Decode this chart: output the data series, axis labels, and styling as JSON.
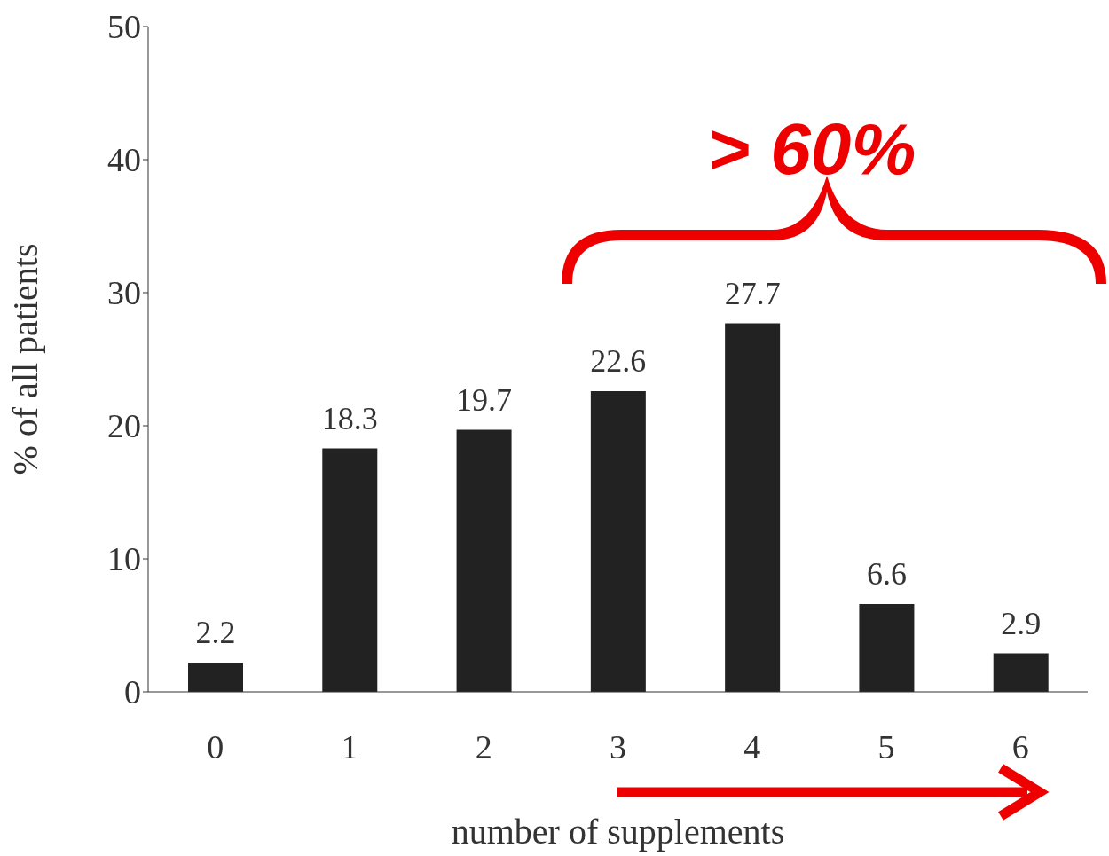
{
  "chart_data": {
    "type": "bar",
    "categories": [
      "0",
      "1",
      "2",
      "3",
      "4",
      "5",
      "6"
    ],
    "values": [
      2.2,
      18.3,
      19.7,
      22.6,
      27.7,
      6.6,
      2.9
    ],
    "color": "#222222",
    "ylim": [
      0,
      50
    ],
    "yticks": [
      0,
      10,
      20,
      30,
      40,
      50
    ],
    "xlabel": "number of supplements",
    "ylabel": "% of all patients",
    "data_labels": true,
    "grid": false,
    "legend": false,
    "annotations": [
      "> 60%"
    ]
  }
}
